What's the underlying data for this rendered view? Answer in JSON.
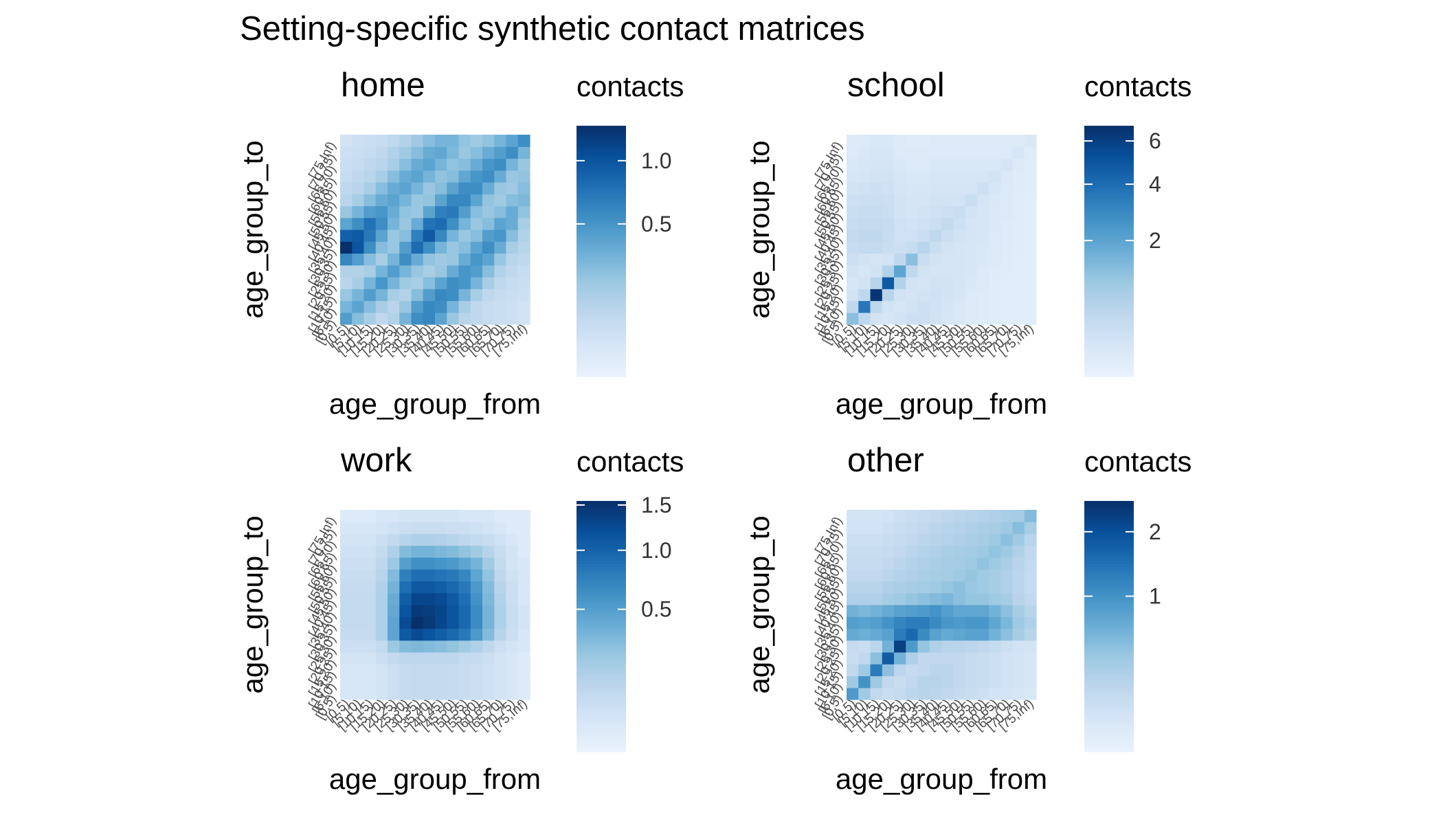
{
  "title": "Setting-specific synthetic contact matrices",
  "age_groups": [
    "[0,5)",
    "[5,10)",
    "[10,15)",
    "[15,20)",
    "[20,25)",
    "[25,30)",
    "[30,35)",
    "[35,40)",
    "[40,45)",
    "[45,50)",
    "[50,55)",
    "[55,60)",
    "[60,65)",
    "[65,70)",
    "[70,75)",
    "[75,Inf)"
  ],
  "palette": [
    "#eaf2fd",
    "#d6e6f6",
    "#bfd7ed",
    "#9dc9e2",
    "#6baed6",
    "#4292c6",
    "#2171b5",
    "#08519c",
    "#08306b"
  ],
  "chart_data": [
    {
      "type": "heatmap",
      "title": "home",
      "xlabel": "age_group_from",
      "ylabel": "age_group_to",
      "legend_title": "contacts",
      "legend_ticks": [
        0.5,
        1.0
      ],
      "legend_tick_labels": [
        "0.5",
        "1.0"
      ],
      "range": [
        0,
        1.35
      ],
      "values": [
        [
          0.45,
          0.25,
          0.15,
          0.08,
          0.12,
          0.3,
          0.55,
          0.6,
          0.4,
          0.2,
          0.1,
          0.08,
          0.06,
          0.05,
          0.04,
          0.03
        ],
        [
          0.3,
          0.4,
          0.25,
          0.15,
          0.1,
          0.2,
          0.45,
          0.6,
          0.55,
          0.3,
          0.15,
          0.08,
          0.06,
          0.05,
          0.04,
          0.03
        ],
        [
          0.2,
          0.3,
          0.45,
          0.3,
          0.15,
          0.12,
          0.25,
          0.45,
          0.6,
          0.55,
          0.3,
          0.15,
          0.08,
          0.06,
          0.05,
          0.04
        ],
        [
          0.1,
          0.15,
          0.3,
          0.5,
          0.3,
          0.18,
          0.15,
          0.25,
          0.4,
          0.55,
          0.5,
          0.3,
          0.15,
          0.08,
          0.06,
          0.05
        ],
        [
          0.12,
          0.12,
          0.15,
          0.3,
          0.45,
          0.3,
          0.2,
          0.15,
          0.2,
          0.35,
          0.5,
          0.45,
          0.25,
          0.12,
          0.08,
          0.06
        ],
        [
          0.6,
          0.45,
          0.25,
          0.15,
          0.3,
          0.55,
          0.35,
          0.22,
          0.18,
          0.2,
          0.35,
          0.5,
          0.4,
          0.2,
          0.1,
          0.08
        ],
        [
          1.35,
          1.0,
          0.55,
          0.25,
          0.2,
          0.45,
          0.8,
          0.55,
          0.3,
          0.2,
          0.25,
          0.4,
          0.55,
          0.35,
          0.15,
          0.1
        ],
        [
          0.9,
          0.95,
          0.7,
          0.4,
          0.2,
          0.25,
          0.65,
          0.95,
          0.6,
          0.3,
          0.2,
          0.25,
          0.45,
          0.5,
          0.25,
          0.12
        ],
        [
          0.4,
          0.55,
          0.75,
          0.55,
          0.3,
          0.2,
          0.35,
          0.75,
          0.8,
          0.55,
          0.3,
          0.2,
          0.25,
          0.4,
          0.35,
          0.15
        ],
        [
          0.2,
          0.3,
          0.45,
          0.5,
          0.35,
          0.22,
          0.2,
          0.4,
          0.65,
          0.7,
          0.45,
          0.25,
          0.2,
          0.25,
          0.35,
          0.22
        ],
        [
          0.1,
          0.15,
          0.25,
          0.35,
          0.4,
          0.3,
          0.2,
          0.22,
          0.4,
          0.6,
          0.6,
          0.4,
          0.22,
          0.18,
          0.25,
          0.28
        ],
        [
          0.08,
          0.1,
          0.15,
          0.25,
          0.35,
          0.4,
          0.3,
          0.2,
          0.25,
          0.4,
          0.55,
          0.55,
          0.35,
          0.2,
          0.18,
          0.25
        ],
        [
          0.06,
          0.08,
          0.1,
          0.15,
          0.25,
          0.35,
          0.4,
          0.3,
          0.22,
          0.25,
          0.38,
          0.5,
          0.55,
          0.35,
          0.2,
          0.22
        ],
        [
          0.05,
          0.06,
          0.08,
          0.1,
          0.15,
          0.25,
          0.35,
          0.4,
          0.3,
          0.22,
          0.25,
          0.35,
          0.5,
          0.55,
          0.3,
          0.2
        ],
        [
          0.04,
          0.05,
          0.06,
          0.08,
          0.12,
          0.18,
          0.25,
          0.35,
          0.38,
          0.28,
          0.2,
          0.25,
          0.35,
          0.45,
          0.55,
          0.3
        ],
        [
          0.03,
          0.04,
          0.05,
          0.06,
          0.08,
          0.12,
          0.18,
          0.25,
          0.3,
          0.3,
          0.22,
          0.18,
          0.22,
          0.3,
          0.4,
          0.55
        ]
      ]
    },
    {
      "type": "heatmap",
      "title": "school",
      "xlabel": "age_group_from",
      "ylabel": "age_group_to",
      "legend_title": "contacts",
      "legend_ticks": [
        2,
        4,
        6
      ],
      "legend_tick_labels": [
        "2",
        "4",
        "6"
      ],
      "range": [
        0,
        6.8
      ],
      "values": [
        [
          1.2,
          0.4,
          0.15,
          0.1,
          0.15,
          0.2,
          0.2,
          0.15,
          0.1,
          0.08,
          0.05,
          0.04,
          0.03,
          0.02,
          0.02,
          0.02
        ],
        [
          0.4,
          3.6,
          0.4,
          0.15,
          0.1,
          0.15,
          0.2,
          0.18,
          0.12,
          0.08,
          0.05,
          0.04,
          0.03,
          0.02,
          0.02,
          0.02
        ],
        [
          0.15,
          0.4,
          6.5,
          0.5,
          0.15,
          0.12,
          0.15,
          0.18,
          0.15,
          0.1,
          0.06,
          0.04,
          0.03,
          0.02,
          0.02,
          0.02
        ],
        [
          0.1,
          0.15,
          0.5,
          4.8,
          0.6,
          0.15,
          0.12,
          0.15,
          0.15,
          0.12,
          0.08,
          0.05,
          0.03,
          0.02,
          0.02,
          0.02
        ],
        [
          0.15,
          0.1,
          0.15,
          0.6,
          2.0,
          0.4,
          0.15,
          0.12,
          0.12,
          0.12,
          0.1,
          0.06,
          0.04,
          0.03,
          0.02,
          0.02
        ],
        [
          0.2,
          0.15,
          0.12,
          0.15,
          0.4,
          1.2,
          0.25,
          0.15,
          0.12,
          0.12,
          0.1,
          0.08,
          0.05,
          0.03,
          0.02,
          0.02
        ],
        [
          0.3,
          0.35,
          0.35,
          0.25,
          0.2,
          0.3,
          0.5,
          0.25,
          0.15,
          0.12,
          0.1,
          0.08,
          0.06,
          0.04,
          0.03,
          0.02
        ],
        [
          0.35,
          0.4,
          0.4,
          0.3,
          0.18,
          0.18,
          0.25,
          0.4,
          0.22,
          0.15,
          0.12,
          0.1,
          0.06,
          0.04,
          0.03,
          0.02
        ],
        [
          0.3,
          0.35,
          0.35,
          0.3,
          0.18,
          0.15,
          0.18,
          0.22,
          0.35,
          0.2,
          0.12,
          0.1,
          0.07,
          0.04,
          0.03,
          0.02
        ],
        [
          0.25,
          0.3,
          0.3,
          0.25,
          0.15,
          0.12,
          0.15,
          0.18,
          0.2,
          0.28,
          0.15,
          0.1,
          0.07,
          0.05,
          0.03,
          0.02
        ],
        [
          0.2,
          0.22,
          0.25,
          0.22,
          0.15,
          0.12,
          0.12,
          0.15,
          0.15,
          0.15,
          0.25,
          0.12,
          0.08,
          0.05,
          0.03,
          0.02
        ],
        [
          0.15,
          0.18,
          0.2,
          0.18,
          0.12,
          0.1,
          0.1,
          0.12,
          0.12,
          0.12,
          0.12,
          0.2,
          0.1,
          0.06,
          0.04,
          0.03
        ],
        [
          0.1,
          0.12,
          0.15,
          0.15,
          0.1,
          0.08,
          0.08,
          0.1,
          0.1,
          0.1,
          0.1,
          0.1,
          0.15,
          0.07,
          0.04,
          0.03
        ],
        [
          0.08,
          0.1,
          0.12,
          0.12,
          0.08,
          0.06,
          0.06,
          0.08,
          0.08,
          0.08,
          0.08,
          0.08,
          0.08,
          0.12,
          0.05,
          0.03
        ],
        [
          0.06,
          0.08,
          0.1,
          0.1,
          0.06,
          0.05,
          0.05,
          0.06,
          0.06,
          0.06,
          0.06,
          0.06,
          0.06,
          0.06,
          0.1,
          0.04
        ],
        [
          0.05,
          0.06,
          0.08,
          0.08,
          0.05,
          0.04,
          0.04,
          0.05,
          0.05,
          0.05,
          0.05,
          0.05,
          0.05,
          0.05,
          0.05,
          0.08
        ]
      ]
    },
    {
      "type": "heatmap",
      "title": "work",
      "xlabel": "age_group_from",
      "ylabel": "age_group_to",
      "legend_title": "contacts",
      "legend_ticks": [
        0.5,
        1.0,
        1.5
      ],
      "legend_tick_labels": [
        "0.5",
        "1.0",
        "1.5"
      ],
      "range": [
        0,
        1.55
      ],
      "values": [
        [
          0.02,
          0.02,
          0.02,
          0.03,
          0.05,
          0.07,
          0.08,
          0.08,
          0.08,
          0.07,
          0.06,
          0.05,
          0.04,
          0.03,
          0.02,
          0.01
        ],
        [
          0.02,
          0.02,
          0.02,
          0.03,
          0.05,
          0.07,
          0.08,
          0.08,
          0.08,
          0.07,
          0.06,
          0.05,
          0.04,
          0.03,
          0.02,
          0.01
        ],
        [
          0.02,
          0.02,
          0.02,
          0.03,
          0.05,
          0.07,
          0.08,
          0.08,
          0.08,
          0.07,
          0.06,
          0.05,
          0.04,
          0.03,
          0.02,
          0.01
        ],
        [
          0.03,
          0.03,
          0.03,
          0.05,
          0.08,
          0.1,
          0.1,
          0.1,
          0.1,
          0.1,
          0.08,
          0.07,
          0.05,
          0.03,
          0.02,
          0.01
        ],
        [
          0.05,
          0.05,
          0.05,
          0.08,
          0.22,
          0.3,
          0.32,
          0.3,
          0.28,
          0.25,
          0.2,
          0.15,
          0.1,
          0.05,
          0.03,
          0.02
        ],
        [
          0.07,
          0.07,
          0.07,
          0.15,
          0.45,
          1.1,
          1.25,
          1.15,
          1.05,
          0.95,
          0.8,
          0.55,
          0.3,
          0.12,
          0.05,
          0.02
        ],
        [
          0.08,
          0.08,
          0.08,
          0.15,
          0.45,
          1.25,
          1.55,
          1.45,
          1.3,
          1.15,
          0.95,
          0.65,
          0.35,
          0.15,
          0.06,
          0.03
        ],
        [
          0.08,
          0.08,
          0.08,
          0.15,
          0.42,
          1.15,
          1.45,
          1.4,
          1.3,
          1.15,
          0.95,
          0.65,
          0.35,
          0.15,
          0.06,
          0.03
        ],
        [
          0.08,
          0.08,
          0.08,
          0.15,
          0.4,
          1.05,
          1.3,
          1.3,
          1.25,
          1.1,
          0.9,
          0.6,
          0.32,
          0.14,
          0.05,
          0.02
        ],
        [
          0.07,
          0.07,
          0.07,
          0.14,
          0.35,
          0.9,
          1.1,
          1.1,
          1.05,
          0.95,
          0.8,
          0.55,
          0.3,
          0.12,
          0.05,
          0.02
        ],
        [
          0.06,
          0.06,
          0.06,
          0.12,
          0.3,
          0.75,
          0.9,
          0.9,
          0.85,
          0.8,
          0.7,
          0.45,
          0.25,
          0.1,
          0.04,
          0.02
        ],
        [
          0.05,
          0.05,
          0.05,
          0.1,
          0.22,
          0.5,
          0.62,
          0.62,
          0.58,
          0.55,
          0.45,
          0.35,
          0.2,
          0.08,
          0.03,
          0.02
        ],
        [
          0.04,
          0.04,
          0.04,
          0.08,
          0.15,
          0.3,
          0.35,
          0.35,
          0.32,
          0.3,
          0.25,
          0.2,
          0.12,
          0.06,
          0.03,
          0.01
        ],
        [
          0.03,
          0.03,
          0.03,
          0.05,
          0.08,
          0.12,
          0.15,
          0.15,
          0.14,
          0.12,
          0.1,
          0.08,
          0.06,
          0.04,
          0.02,
          0.01
        ],
        [
          0.02,
          0.02,
          0.02,
          0.03,
          0.04,
          0.05,
          0.06,
          0.06,
          0.06,
          0.05,
          0.05,
          0.04,
          0.03,
          0.02,
          0.01,
          0.01
        ],
        [
          0.01,
          0.01,
          0.01,
          0.02,
          0.02,
          0.03,
          0.03,
          0.03,
          0.03,
          0.03,
          0.02,
          0.02,
          0.02,
          0.01,
          0.01,
          0.01
        ]
      ]
    },
    {
      "type": "heatmap",
      "title": "other",
      "xlabel": "age_group_from",
      "ylabel": "age_group_to",
      "legend_title": "contacts",
      "legend_ticks": [
        1,
        2
      ],
      "legend_tick_labels": [
        "1",
        "2"
      ],
      "range": [
        0,
        2.6
      ],
      "values": [
        [
          0.9,
          0.35,
          0.15,
          0.1,
          0.12,
          0.18,
          0.2,
          0.18,
          0.15,
          0.12,
          0.1,
          0.08,
          0.06,
          0.05,
          0.04,
          0.03
        ],
        [
          0.35,
          1.0,
          0.35,
          0.15,
          0.1,
          0.15,
          0.2,
          0.2,
          0.18,
          0.15,
          0.12,
          0.1,
          0.08,
          0.06,
          0.05,
          0.04
        ],
        [
          0.15,
          0.35,
          1.3,
          0.45,
          0.18,
          0.12,
          0.15,
          0.18,
          0.18,
          0.15,
          0.12,
          0.1,
          0.08,
          0.06,
          0.05,
          0.04
        ],
        [
          0.1,
          0.15,
          0.45,
          1.8,
          0.6,
          0.25,
          0.15,
          0.15,
          0.15,
          0.15,
          0.12,
          0.1,
          0.08,
          0.06,
          0.05,
          0.04
        ],
        [
          0.12,
          0.1,
          0.18,
          0.6,
          2.3,
          0.9,
          0.4,
          0.25,
          0.2,
          0.2,
          0.18,
          0.15,
          0.12,
          0.08,
          0.06,
          0.05
        ],
        [
          0.7,
          0.65,
          0.7,
          0.8,
          1.3,
          1.6,
          1.1,
          0.8,
          0.7,
          0.75,
          0.8,
          0.8,
          0.6,
          0.45,
          0.3,
          0.2
        ],
        [
          0.85,
          0.8,
          0.85,
          1.0,
          1.2,
          1.3,
          1.3,
          1.1,
          0.95,
          0.9,
          0.95,
          0.95,
          0.75,
          0.55,
          0.35,
          0.25
        ],
        [
          0.6,
          0.55,
          0.6,
          0.7,
          0.8,
          0.85,
          0.9,
          1.0,
          0.85,
          0.75,
          0.75,
          0.75,
          0.6,
          0.45,
          0.3,
          0.2
        ],
        [
          0.25,
          0.25,
          0.25,
          0.3,
          0.35,
          0.4,
          0.45,
          0.5,
          0.55,
          0.45,
          0.4,
          0.4,
          0.35,
          0.3,
          0.2,
          0.15
        ],
        [
          0.2,
          0.2,
          0.2,
          0.25,
          0.28,
          0.3,
          0.32,
          0.35,
          0.4,
          0.45,
          0.38,
          0.35,
          0.3,
          0.25,
          0.18,
          0.12
        ],
        [
          0.15,
          0.15,
          0.15,
          0.18,
          0.22,
          0.25,
          0.28,
          0.3,
          0.32,
          0.35,
          0.4,
          0.35,
          0.3,
          0.25,
          0.18,
          0.12
        ],
        [
          0.12,
          0.12,
          0.12,
          0.15,
          0.18,
          0.22,
          0.25,
          0.28,
          0.3,
          0.32,
          0.35,
          0.42,
          0.35,
          0.28,
          0.2,
          0.14
        ],
        [
          0.1,
          0.1,
          0.1,
          0.12,
          0.15,
          0.18,
          0.22,
          0.25,
          0.28,
          0.3,
          0.32,
          0.35,
          0.42,
          0.35,
          0.25,
          0.15
        ],
        [
          0.08,
          0.08,
          0.08,
          0.1,
          0.12,
          0.15,
          0.18,
          0.2,
          0.22,
          0.25,
          0.28,
          0.3,
          0.35,
          0.45,
          0.35,
          0.2
        ],
        [
          0.06,
          0.06,
          0.06,
          0.08,
          0.1,
          0.12,
          0.15,
          0.18,
          0.2,
          0.22,
          0.25,
          0.28,
          0.3,
          0.35,
          0.48,
          0.3
        ],
        [
          0.05,
          0.05,
          0.05,
          0.06,
          0.08,
          0.1,
          0.12,
          0.14,
          0.16,
          0.18,
          0.2,
          0.22,
          0.25,
          0.28,
          0.3,
          0.5
        ]
      ]
    }
  ]
}
